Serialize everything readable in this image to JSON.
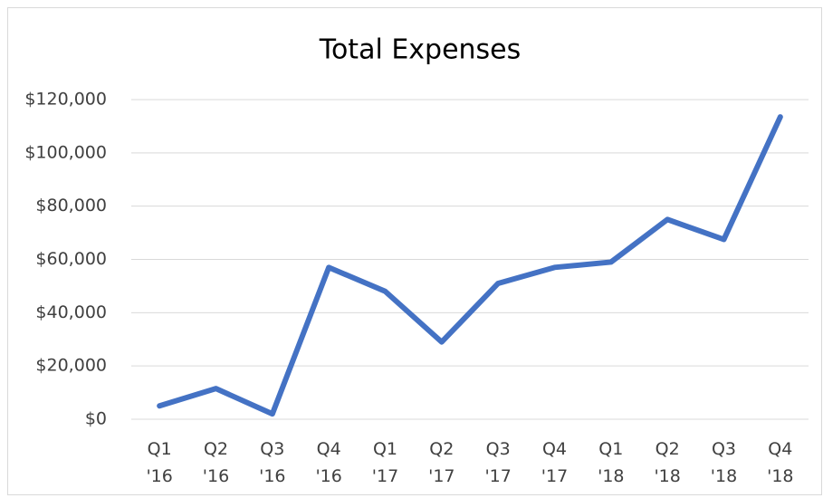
{
  "chart_data": {
    "type": "line",
    "title": "Total Expenses",
    "categories": [
      "Q1\n'16",
      "Q2\n'16",
      "Q3\n'16",
      "Q4\n'16",
      "Q1\n'17",
      "Q2\n'17",
      "Q3\n'17",
      "Q4\n'17",
      "Q1\n'18",
      "Q2\n'18",
      "Q3\n'18",
      "Q4\n'18"
    ],
    "values": [
      5000,
      11500,
      2000,
      57000,
      48000,
      29000,
      51000,
      57000,
      59000,
      75000,
      67500,
      113500
    ],
    "color": "#4472c4",
    "ylim": [
      0,
      120000
    ],
    "yticks": [
      {
        "value": 0,
        "label": "$0"
      },
      {
        "value": 20000,
        "label": "$20,000"
      },
      {
        "value": 40000,
        "label": "$40,000"
      },
      {
        "value": 60000,
        "label": "$60,000"
      },
      {
        "value": 80000,
        "label": "$80,000"
      },
      {
        "value": 100000,
        "label": "$100,000"
      },
      {
        "value": 120000,
        "label": "$120,000"
      }
    ],
    "grid": true
  }
}
